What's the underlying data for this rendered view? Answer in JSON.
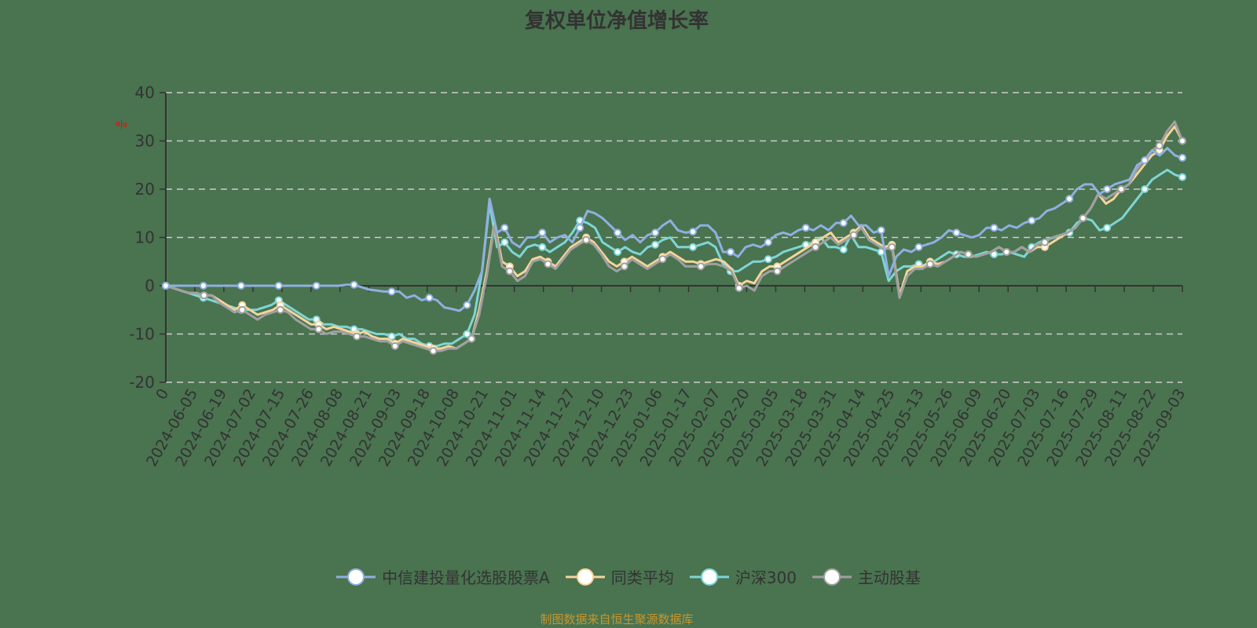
{
  "title": "复权单位净值增长率",
  "source_note": "制图数据来自恒生聚源数据库",
  "colors": {
    "background": "#4a7350",
    "grid": "#cccccc",
    "axis": "#333333",
    "text": "#333333",
    "unit": "#ff0000",
    "source": "#c9962a"
  },
  "chart_data": {
    "type": "line",
    "title": "复权单位净值增长率",
    "xlabel": "",
    "ylabel": "%",
    "ylim": [
      -20,
      40
    ],
    "yticks": [
      40,
      30,
      20,
      10,
      0,
      -10,
      -20
    ],
    "grid": true,
    "legend_position": "bottom",
    "categories": [
      "0",
      "2024-06-05",
      "2024-06-19",
      "2024-07-02",
      "2024-07-15",
      "2024-07-26",
      "2024-08-08",
      "2024-08-21",
      "2024-09-03",
      "2024-09-18",
      "2024-10-08",
      "2024-10-21",
      "2024-11-01",
      "2024-11-14",
      "2024-11-27",
      "2024-12-10",
      "2024-12-23",
      "2025-01-06",
      "2025-01-17",
      "2025-02-07",
      "2025-02-20",
      "2025-03-05",
      "2025-03-18",
      "2025-03-31",
      "2025-04-14",
      "2025-04-25",
      "2025-05-13",
      "2025-05-26",
      "2025-06-09",
      "2025-06-20",
      "2025-07-03",
      "2025-07-16",
      "2025-07-29",
      "2025-08-11",
      "2025-08-22",
      "2025-09-03"
    ],
    "series": [
      {
        "name": "中信建投量化选股股票A",
        "color": "#8fb0e0",
        "values": [
          0,
          0,
          0,
          0,
          0,
          0,
          0,
          0,
          0,
          0,
          0,
          0,
          0,
          0,
          0,
          0,
          0,
          0,
          0,
          0,
          0,
          0,
          0,
          0,
          0.2,
          0.2,
          -0.3,
          -0.8,
          -1,
          -1.2,
          -1.2,
          -1.2,
          -2.5,
          -2,
          -3,
          -2.5,
          -3,
          -4.5,
          -4.8,
          -5.2,
          -4,
          -1,
          3,
          18,
          11,
          12,
          9,
          8,
          10,
          10,
          11,
          9,
          10,
          10.5,
          9,
          12,
          15.5,
          15,
          14,
          12.5,
          11,
          9.5,
          10.5,
          9,
          10.5,
          11,
          12.5,
          13.5,
          11.5,
          11,
          11.2,
          12.5,
          12.5,
          11,
          7,
          7,
          6,
          8,
          8.5,
          8,
          9,
          10.5,
          11,
          10.5,
          11.5,
          12,
          11.5,
          12.5,
          11.5,
          13,
          13,
          14.5,
          12.5,
          12.5,
          11,
          11.5,
          2,
          6,
          7.5,
          7,
          8,
          8.5,
          9,
          10,
          11.5,
          11,
          10.5,
          10,
          10.5,
          12,
          12,
          11.5,
          12.5,
          12,
          13,
          13.5,
          14,
          15.5,
          16,
          17,
          18,
          20,
          21,
          21,
          19,
          20,
          21,
          21.5,
          22,
          25,
          26,
          28,
          27,
          28.5,
          27,
          26.5
        ]
      },
      {
        "name": "同类平均",
        "color": "#f5d49a",
        "values": [
          0,
          -0.5,
          -1,
          -1.5,
          -1.5,
          -2,
          -2,
          -3,
          -4,
          -5,
          -4,
          -5,
          -6,
          -5.5,
          -5,
          -4,
          -5,
          -6,
          -7,
          -8,
          -8,
          -9,
          -8.5,
          -9,
          -9.5,
          -10,
          -9.5,
          -10.5,
          -11,
          -11,
          -12,
          -11,
          -11.5,
          -12,
          -12.5,
          -13,
          -13,
          -12.5,
          -13,
          -12,
          -11,
          -5,
          3,
          13,
          5,
          4,
          2,
          3,
          5.5,
          6,
          5,
          4,
          6,
          8,
          9,
          10,
          9,
          7,
          5,
          4,
          5,
          6,
          5,
          4,
          5,
          6,
          7,
          6,
          5,
          5,
          4.5,
          5,
          5.5,
          5,
          3.5,
          0,
          1,
          0.5,
          3,
          4,
          4,
          5,
          6,
          7,
          8,
          9,
          10,
          11,
          9,
          10,
          11,
          12.5,
          10,
          9,
          8,
          8.5,
          -2,
          3,
          4,
          4,
          5,
          4.5,
          5,
          6,
          7,
          6.5,
          6,
          6.5,
          7,
          8,
          7,
          7,
          8,
          7,
          8,
          8,
          9,
          10,
          11,
          12,
          14,
          16,
          19,
          17,
          18,
          20,
          21,
          23,
          25,
          27,
          28,
          31,
          33,
          30
        ]
      },
      {
        "name": "沪深300",
        "color": "#7dd6d6",
        "values": [
          0,
          -0.5,
          -1,
          -1.5,
          -2,
          -2.5,
          -3,
          -3.5,
          -4,
          -4.5,
          -5,
          -5,
          -5,
          -4.5,
          -4,
          -3,
          -4,
          -5,
          -6,
          -7,
          -7,
          -8,
          -8,
          -8.5,
          -8.5,
          -9,
          -9,
          -9.5,
          -10,
          -10,
          -10.5,
          -10,
          -11,
          -11,
          -12,
          -12.5,
          -12.5,
          -12,
          -12,
          -11,
          -10,
          -6,
          3,
          17,
          8,
          9,
          7,
          6,
          8,
          8.5,
          8,
          7,
          8,
          9,
          11,
          13.5,
          13,
          12,
          9,
          8,
          7,
          8,
          7,
          6.5,
          8,
          8.5,
          9.5,
          10,
          8,
          8,
          8,
          8.5,
          9,
          8,
          4.5,
          3,
          3,
          4,
          5,
          5,
          5.5,
          6,
          7,
          7.5,
          8,
          8.5,
          9,
          10,
          8,
          8,
          7.5,
          10.5,
          8,
          8,
          7.5,
          7,
          1,
          3,
          4,
          4,
          4.5,
          4,
          5,
          6,
          7,
          6.5,
          6,
          6,
          6.5,
          7,
          6.5,
          6.5,
          7,
          6.5,
          6,
          8,
          9,
          9.5,
          10,
          10.5,
          11,
          13,
          14,
          13.5,
          11.5,
          12,
          13,
          14,
          16,
          18,
          20,
          22,
          23,
          24,
          23,
          22.5
        ]
      },
      {
        "name": "主动股基",
        "color": "#a0a0a0",
        "values": [
          0,
          -0.5,
          -1,
          -1.5,
          -1.5,
          -2,
          -2,
          -3.5,
          -4.5,
          -5.5,
          -5,
          -6,
          -7,
          -6,
          -5.5,
          -5,
          -5.5,
          -7,
          -8,
          -9,
          -9,
          -10,
          -9.5,
          -9.5,
          -10,
          -10.5,
          -10.5,
          -11,
          -11.5,
          -11.5,
          -12.5,
          -11.5,
          -12,
          -12.5,
          -13,
          -13.5,
          -13.5,
          -13,
          -13,
          -12,
          -11,
          -6,
          2,
          12.5,
          4,
          3,
          1,
          2,
          5,
          5.5,
          4.5,
          3.5,
          5.5,
          7.5,
          8.5,
          9.5,
          8.5,
          6.5,
          4,
          3,
          4,
          5.5,
          4.5,
          3.5,
          4.5,
          5.5,
          6.5,
          5.5,
          4,
          4,
          4,
          4.5,
          4.5,
          4,
          3,
          -0.5,
          0,
          -1,
          2,
          3,
          3,
          4,
          5,
          6,
          7,
          8,
          9,
          10,
          8.5,
          9.5,
          10.5,
          12,
          9.5,
          8.5,
          7.5,
          8,
          -2.5,
          2,
          3.5,
          3.5,
          4.5,
          4,
          5,
          6,
          7,
          6.5,
          6,
          6.5,
          7,
          8,
          7,
          7,
          8,
          7,
          8.5,
          9,
          10,
          10.5,
          11,
          12,
          14,
          16,
          19,
          18,
          19,
          20,
          21,
          24,
          26,
          28,
          29,
          32,
          34,
          30
        ]
      }
    ]
  },
  "legend": [
    {
      "label": "中信建投量化选股股票A",
      "color": "#8fb0e0"
    },
    {
      "label": "同类平均",
      "color": "#f5d49a"
    },
    {
      "label": "沪深300",
      "color": "#7dd6d6"
    },
    {
      "label": "主动股基",
      "color": "#a0a0a0"
    }
  ],
  "axis": {
    "y_unit": "%",
    "y_tick_labels": [
      "40",
      "30",
      "20",
      "10",
      "0",
      "-10",
      "-20"
    ]
  }
}
